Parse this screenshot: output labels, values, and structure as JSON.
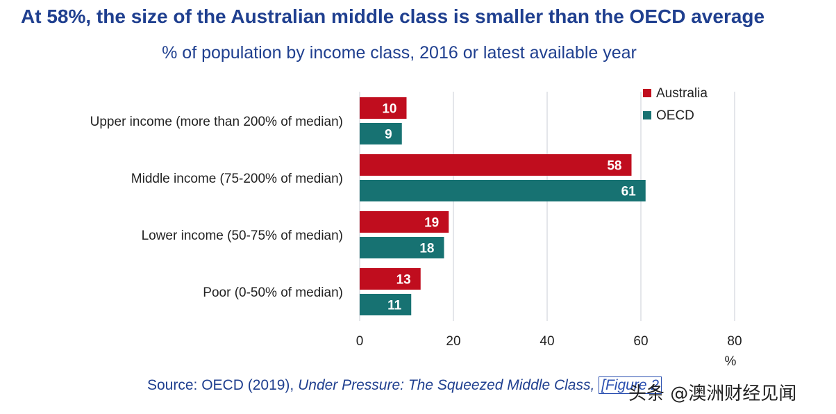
{
  "title": "At 58%, the size of the Australian middle class is smaller than the OECD average",
  "subtitle": "% of population by income class, 2016 or latest available year",
  "source": {
    "prefix": "Source: OECD (2019), ",
    "italic": "Under Pressure: The Squeezed Middle Class, ",
    "link": "[Figure 2"
  },
  "watermark": "头条 @澳洲财经见闻",
  "colors": {
    "australia": "#c00d1e",
    "oecd": "#177272",
    "grid": "#c8ccd6"
  },
  "chart_data": {
    "type": "bar",
    "orientation": "horizontal",
    "categories": [
      "Upper income (more than 200% of median)",
      "Middle income (75-200% of median)",
      "Lower income (50-75% of median)",
      "Poor (0-50% of median)"
    ],
    "series": [
      {
        "name": "Australia",
        "values": [
          10,
          58,
          19,
          13
        ]
      },
      {
        "name": "OECD",
        "values": [
          9,
          61,
          18,
          11
        ]
      }
    ],
    "xlim": [
      0,
      80
    ],
    "xticks": [
      0,
      20,
      40,
      60,
      80
    ],
    "xlabel": "%",
    "legend_position": "top-right",
    "grid": true
  }
}
